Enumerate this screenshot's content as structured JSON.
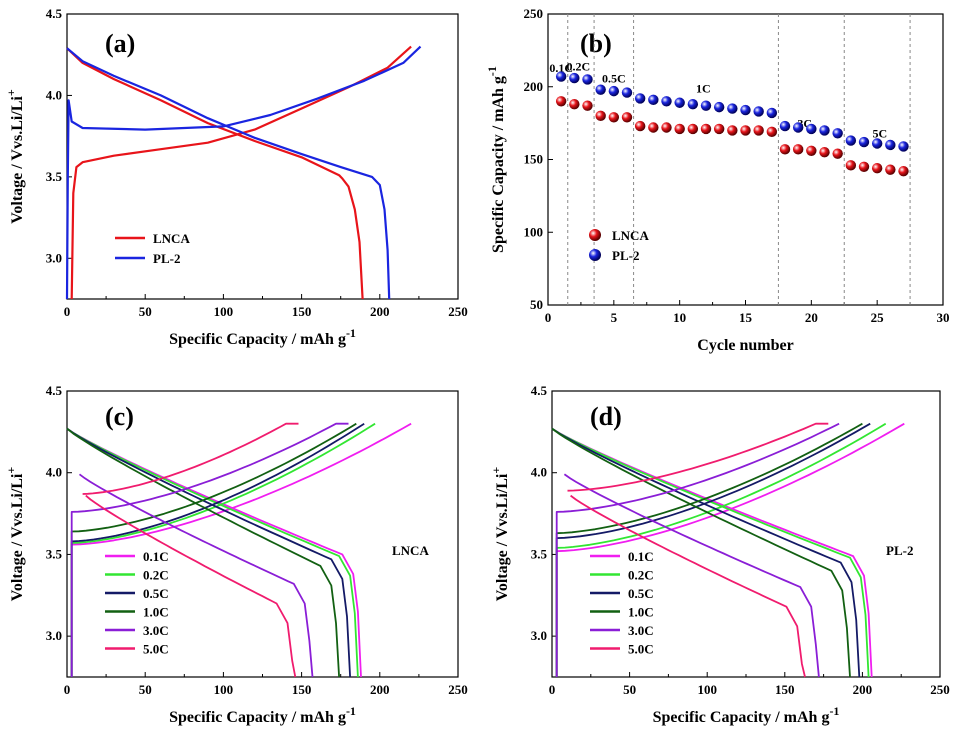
{
  "chart_data": [
    {
      "id": "a",
      "type": "line",
      "panel_label": "(a)",
      "xlabel": "Specific Capacity / mAh g",
      "xlabel_sup": "-1",
      "ylabel": "Voltage / Vvs.Li/Li",
      "ylabel_sup": "+",
      "xlim": [
        0,
        250
      ],
      "ylim": [
        2.75,
        4.5
      ],
      "xticks": [
        "0",
        "50",
        "100",
        "150",
        "200",
        "250"
      ],
      "yticks": [
        "3.0",
        "3.5",
        "4.0",
        "4.5"
      ],
      "legend_position": "lower-left",
      "series": [
        {
          "name": "LNCA",
          "color": "#e8141a",
          "charge": [
            [
              3,
              2.75
            ],
            [
              4,
              3.4
            ],
            [
              6,
              3.56
            ],
            [
              10,
              3.59
            ],
            [
              30,
              3.63
            ],
            [
              60,
              3.67
            ],
            [
              90,
              3.71
            ],
            [
              120,
              3.79
            ],
            [
              150,
              3.92
            ],
            [
              180,
              4.05
            ],
            [
              205,
              4.17
            ],
            [
              220,
              4.3
            ]
          ],
          "discharge": [
            [
              0,
              4.29
            ],
            [
              10,
              4.2
            ],
            [
              30,
              4.1
            ],
            [
              60,
              3.97
            ],
            [
              90,
              3.83
            ],
            [
              120,
              3.72
            ],
            [
              150,
              3.62
            ],
            [
              174,
              3.51
            ],
            [
              176,
              3.49
            ],
            [
              180,
              3.44
            ],
            [
              184,
              3.3
            ],
            [
              187,
              3.1
            ],
            [
              189,
              2.75
            ]
          ]
        },
        {
          "name": "PL-2",
          "color": "#1a25e0",
          "charge": [
            [
              0,
              2.75
            ],
            [
              0.5,
              3.5
            ],
            [
              1,
              3.97
            ],
            [
              3,
              3.84
            ],
            [
              10,
              3.8
            ],
            [
              50,
              3.79
            ],
            [
              100,
              3.81
            ],
            [
              130,
              3.88
            ],
            [
              160,
              3.98
            ],
            [
              190,
              4.09
            ],
            [
              215,
              4.2
            ],
            [
              226,
              4.3
            ]
          ],
          "discharge": [
            [
              0,
              4.29
            ],
            [
              10,
              4.21
            ],
            [
              30,
              4.12
            ],
            [
              60,
              4.0
            ],
            [
              90,
              3.86
            ],
            [
              120,
              3.74
            ],
            [
              150,
              3.64
            ],
            [
              175,
              3.56
            ],
            [
              195,
              3.5
            ],
            [
              200,
              3.45
            ],
            [
              203,
              3.3
            ],
            [
              205,
              3.05
            ],
            [
              206,
              2.75
            ]
          ]
        }
      ]
    },
    {
      "id": "b",
      "type": "scatter",
      "panel_label": "(b)",
      "xlabel": "Cycle number",
      "ylabel": "Specific Capacity / mAh g",
      "ylabel_sup": "-1",
      "xlim": [
        0,
        30
      ],
      "ylim": [
        50,
        250
      ],
      "xticks": [
        "0",
        "5",
        "10",
        "15",
        "20",
        "25",
        "30"
      ],
      "yticks": [
        "50",
        "100",
        "150",
        "200",
        "250"
      ],
      "legend_position": "lower-left",
      "dividers": [
        1.5,
        3.5,
        6.5,
        17.5,
        22.5,
        27.5
      ],
      "rate_labels": [
        {
          "text": "0.1C",
          "x": 1,
          "y": 210
        },
        {
          "text": "0.2C",
          "x": 2.3,
          "y": 211
        },
        {
          "text": "0.5C",
          "x": 5.0,
          "y": 203
        },
        {
          "text": "1C",
          "x": 11.8,
          "y": 196
        },
        {
          "text": "3C",
          "x": 19.5,
          "y": 172
        },
        {
          "text": "5C",
          "x": 25.2,
          "y": 165
        }
      ],
      "series": [
        {
          "name": "LNCA",
          "color": "#e8141a",
          "x": [
            1,
            2,
            3,
            4,
            5,
            6,
            7,
            8,
            9,
            10,
            11,
            12,
            13,
            14,
            15,
            16,
            17,
            18,
            19,
            20,
            21,
            22,
            23,
            24,
            25,
            26,
            27
          ],
          "values": [
            190,
            188,
            187,
            180,
            179,
            179,
            173,
            172,
            172,
            171,
            171,
            171,
            171,
            170,
            170,
            170,
            169,
            157,
            157,
            156,
            155,
            154,
            146,
            145,
            144,
            143,
            142
          ]
        },
        {
          "name": "PL-2",
          "color": "#1a25e0",
          "x": [
            1,
            2,
            3,
            4,
            5,
            6,
            7,
            8,
            9,
            10,
            11,
            12,
            13,
            14,
            15,
            16,
            17,
            18,
            19,
            20,
            21,
            22,
            23,
            24,
            25,
            26,
            27
          ],
          "values": [
            207,
            206,
            205,
            198,
            197,
            196,
            192,
            191,
            190,
            189,
            188,
            187,
            186,
            185,
            184,
            183,
            182,
            173,
            172,
            171,
            170,
            168,
            163,
            162,
            161,
            160,
            159
          ]
        }
      ]
    },
    {
      "id": "c",
      "type": "line",
      "panel_label": "(c)",
      "sample_label": "LNCA",
      "xlabel": "Specific Capacity / mAh g",
      "xlabel_sup": "-1",
      "ylabel": "Voltage / Vvs.Li/Li",
      "ylabel_sup": "+",
      "xlim": [
        0,
        250
      ],
      "ylim": [
        2.75,
        4.5
      ],
      "xticks": [
        "0",
        "50",
        "100",
        "150",
        "200",
        "250"
      ],
      "yticks": [
        "3.0",
        "3.5",
        "4.0",
        "4.5"
      ],
      "legend_position": "lower-left",
      "series": [
        {
          "name": "0.1C",
          "color": "#f01ef0",
          "charge_cap": 220,
          "discharge_cap": 188,
          "v0": 3.56,
          "dv": 3.5
        },
        {
          "name": "0.2C",
          "color": "#32e632",
          "charge_cap": 197,
          "discharge_cap": 186,
          "v0": 3.57,
          "dv": 3.49
        },
        {
          "name": "0.5C",
          "color": "#141a66",
          "charge_cap": 190,
          "discharge_cap": 181,
          "v0": 3.58,
          "dv": 3.47
        },
        {
          "name": "1.0C",
          "color": "#126012",
          "charge_cap": 185,
          "discharge_cap": 174,
          "v0": 3.64,
          "dv": 3.43
        },
        {
          "name": "3.0C",
          "color": "#8a1ed6",
          "charge_cap": 172,
          "discharge_cap": 157,
          "v0": 3.76,
          "dv": 3.32
        },
        {
          "name": "5.0C",
          "color": "#f01c6e",
          "charge_cap": 140,
          "discharge_cap": 146,
          "v0": 3.87,
          "dv": 3.2
        }
      ]
    },
    {
      "id": "d",
      "type": "line",
      "panel_label": "(d)",
      "sample_label": "PL-2",
      "xlabel": "Specific Capacity / mAh g",
      "xlabel_sup": "-1",
      "ylabel": "Voltage / Vvs.Li/Li",
      "ylabel_sup": "+",
      "xlim": [
        0,
        250
      ],
      "ylim": [
        2.75,
        4.5
      ],
      "xticks": [
        "0",
        "50",
        "100",
        "150",
        "200",
        "250"
      ],
      "yticks": [
        "3.0",
        "3.5",
        "4.0",
        "4.5"
      ],
      "legend_position": "lower-left",
      "series": [
        {
          "name": "0.1C",
          "color": "#f01ef0",
          "charge_cap": 227,
          "discharge_cap": 206,
          "v0": 3.52,
          "dv": 3.49
        },
        {
          "name": "0.2C",
          "color": "#32e632",
          "charge_cap": 215,
          "discharge_cap": 204,
          "v0": 3.54,
          "dv": 3.48
        },
        {
          "name": "0.5C",
          "color": "#141a66",
          "charge_cap": 205,
          "discharge_cap": 198,
          "v0": 3.6,
          "dv": 3.45
        },
        {
          "name": "1.0C",
          "color": "#126012",
          "charge_cap": 200,
          "discharge_cap": 192,
          "v0": 3.63,
          "dv": 3.4
        },
        {
          "name": "3.0C",
          "color": "#8a1ed6",
          "charge_cap": 185,
          "discharge_cap": 172,
          "v0": 3.76,
          "dv": 3.3
        },
        {
          "name": "5.0C",
          "color": "#f01c6e",
          "charge_cap": 170,
          "discharge_cap": 163,
          "v0": 3.89,
          "dv": 3.18
        }
      ]
    }
  ]
}
